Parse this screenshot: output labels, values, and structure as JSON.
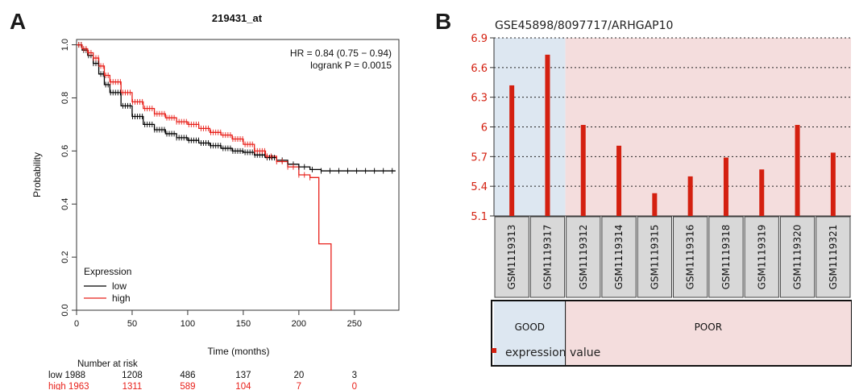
{
  "panels": {
    "a_letter": "A",
    "b_letter": "B"
  },
  "chart_data": [
    {
      "type": "line",
      "title": "219431_at",
      "xlabel": "Time (months)",
      "ylabel": "Probability",
      "xlim": [
        0,
        290
      ],
      "ylim": [
        0,
        1.02
      ],
      "xticks": [
        0,
        50,
        100,
        150,
        200,
        250
      ],
      "yticks": [
        0.0,
        0.2,
        0.4,
        0.6,
        0.8,
        1.0
      ],
      "stats": {
        "hr": "HR = 0.84 (0.75 − 0.94)",
        "logrank": "logrank P = 0.0015"
      },
      "legend": {
        "title": "Expression",
        "position": "bottom-left"
      },
      "series": [
        {
          "name": "low",
          "color": "#000000",
          "x": [
            0,
            5,
            10,
            15,
            20,
            25,
            30,
            40,
            50,
            60,
            70,
            80,
            90,
            100,
            110,
            120,
            130,
            140,
            150,
            160,
            170,
            180,
            190,
            200,
            210,
            220,
            230,
            240,
            250,
            260,
            270,
            280,
            287
          ],
          "y": [
            1.0,
            0.98,
            0.96,
            0.93,
            0.89,
            0.85,
            0.82,
            0.77,
            0.73,
            0.7,
            0.68,
            0.665,
            0.65,
            0.64,
            0.63,
            0.62,
            0.61,
            0.6,
            0.595,
            0.585,
            0.575,
            0.565,
            0.55,
            0.54,
            0.53,
            0.525,
            0.525,
            0.525,
            0.525,
            0.525,
            0.525,
            0.525,
            0.525
          ],
          "censor_x": [
            185,
            190,
            195,
            200,
            205,
            212,
            220,
            228,
            236,
            244,
            252,
            260,
            268,
            276,
            284
          ]
        },
        {
          "name": "high",
          "color": "#e8201a",
          "x": [
            0,
            5,
            10,
            15,
            20,
            25,
            30,
            40,
            50,
            60,
            70,
            80,
            90,
            100,
            110,
            120,
            130,
            140,
            150,
            160,
            170,
            180,
            190,
            200,
            210,
            216,
            218,
            228,
            229
          ],
          "y": [
            1.0,
            0.985,
            0.97,
            0.95,
            0.92,
            0.885,
            0.86,
            0.82,
            0.785,
            0.76,
            0.74,
            0.725,
            0.71,
            0.7,
            0.685,
            0.67,
            0.66,
            0.645,
            0.625,
            0.6,
            0.58,
            0.56,
            0.54,
            0.51,
            0.5,
            0.5,
            0.25,
            0.25,
            0.0
          ],
          "censor_x": [
            175,
            180,
            185,
            190,
            195,
            200,
            205,
            210
          ]
        }
      ],
      "risk_table": {
        "title": "Number at risk",
        "rows": [
          {
            "label": "low 1988",
            "values": [
              "1208",
              "486",
              "137",
              "20",
              "3"
            ]
          },
          {
            "label": "high 1963",
            "values": [
              "1311",
              "589",
              "104",
              "7",
              "0"
            ]
          }
        ]
      }
    },
    {
      "type": "bar",
      "title": "GSE45898/8097717/ARHGAP10",
      "categories": [
        "GSM1119313",
        "GSM1119317",
        "GSM1119312",
        "GSM1119314",
        "GSM1119315",
        "GSM1119316",
        "GSM1119318",
        "GSM1119319",
        "GSM1119320",
        "GSM1119321"
      ],
      "values": [
        6.42,
        6.73,
        6.02,
        5.81,
        5.33,
        5.5,
        5.69,
        5.57,
        6.02,
        5.74
      ],
      "ylim": [
        5.1,
        6.9
      ],
      "yticks": [
        "5.1",
        "5.4",
        "5.7",
        "6",
        "6.3",
        "6.6",
        "6.9"
      ],
      "grid": true,
      "groups": [
        {
          "label": "GOOD",
          "count": 2,
          "color": "#dde7f1"
        },
        {
          "label": "POOR",
          "count": 8,
          "color": "#f4dddd"
        }
      ],
      "bar_color": "#d42010",
      "legend": {
        "label": "expression value",
        "position": "bottom-left"
      }
    }
  ]
}
